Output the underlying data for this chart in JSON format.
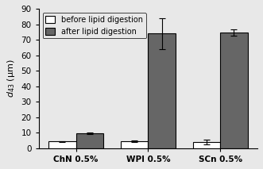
{
  "categories": [
    "ChN 0.5%",
    "WPI 0.5%",
    "SCn 0.5%"
  ],
  "before_values": [
    4.5,
    4.8,
    4.2
  ],
  "after_values": [
    9.5,
    74.0,
    74.5
  ],
  "before_errors": [
    0.3,
    0.5,
    1.5
  ],
  "after_errors": [
    0.5,
    10.0,
    2.0
  ],
  "bar_width": 0.38,
  "before_color": "#ffffff",
  "after_color": "#666666",
  "edge_color": "#000000",
  "ylabel": "$d_{43}$ (μm)",
  "ylim": [
    0,
    90
  ],
  "yticks": [
    0,
    10,
    20,
    30,
    40,
    50,
    60,
    70,
    80,
    90
  ],
  "legend_before": "before lipid digestion",
  "legend_after": "after lipid digestion",
  "capsize": 3,
  "label_fontsize": 8,
  "tick_fontsize": 7.5,
  "legend_fontsize": 7,
  "bg_color": "#e8e8e8",
  "fig_bg_color": "#e8e8e8"
}
